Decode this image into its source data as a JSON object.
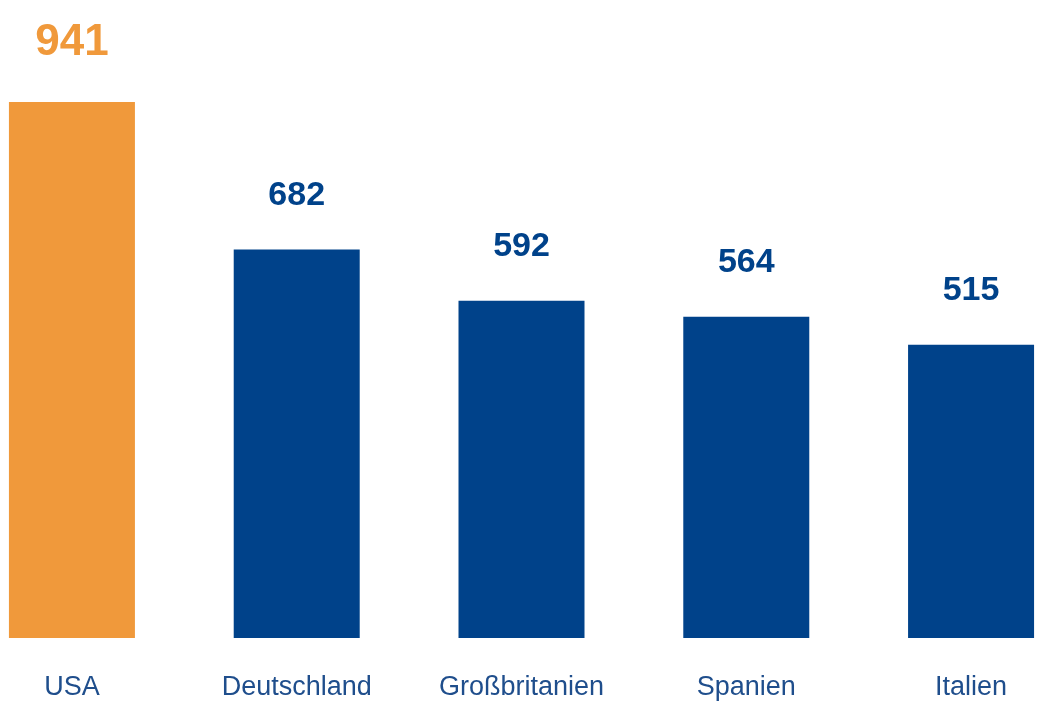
{
  "chart_data": {
    "type": "bar",
    "categories": [
      "USA",
      "Deutschland",
      "Großbritanien",
      "Spanien",
      "Italien"
    ],
    "values": [
      941,
      682,
      592,
      564,
      515
    ],
    "colors": [
      "#f0993b",
      "#00428a",
      "#00428a",
      "#00428a",
      "#00428a"
    ],
    "data_labels": true,
    "grid": false
  }
}
